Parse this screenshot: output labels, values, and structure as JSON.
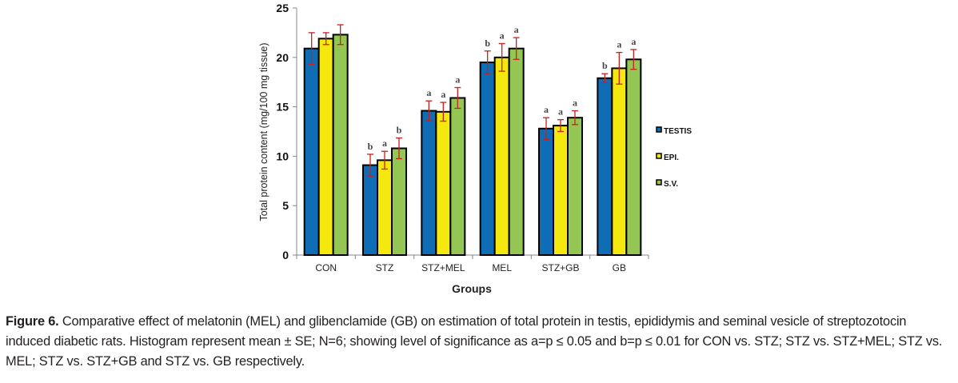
{
  "chart_data": {
    "type": "bar",
    "title": "",
    "xlabel": "Groups",
    "ylabel": "Total protein content (mg/100 mg tissue)",
    "ylim": [
      0,
      25
    ],
    "yticks": [
      0,
      5,
      10,
      15,
      20,
      25
    ],
    "grid": false,
    "legend_position": "right",
    "categories": [
      "CON",
      "STZ",
      "STZ+MEL",
      "MEL",
      "STZ+GB",
      "GB"
    ],
    "series": [
      {
        "name": "TESTIS",
        "color": "#0e6db5",
        "values": [
          20.9,
          9.1,
          14.6,
          19.5,
          12.8,
          17.9
        ],
        "errors": [
          1.6,
          1.1,
          1.0,
          1.15,
          1.1,
          0.45
        ],
        "labels": [
          "",
          "b",
          "a",
          "b",
          "a",
          "b"
        ]
      },
      {
        "name": "EPI.",
        "color": "#f5e80e",
        "values": [
          21.9,
          9.6,
          14.5,
          20.0,
          13.1,
          18.9
        ],
        "errors": [
          0.6,
          0.9,
          0.95,
          1.4,
          0.6,
          1.6
        ],
        "labels": [
          "",
          "a",
          "a",
          "a",
          "a",
          "a"
        ]
      },
      {
        "name": "S.V.",
        "color": "#93c653",
        "values": [
          22.3,
          10.8,
          15.9,
          20.9,
          13.9,
          19.8
        ],
        "errors": [
          1.0,
          1.05,
          1.05,
          1.1,
          0.7,
          1.0
        ],
        "labels": [
          "",
          "b",
          "a",
          "a",
          "a",
          "a"
        ]
      }
    ],
    "error_bar_color": "#cc1f1f"
  },
  "caption": {
    "label": "Figure 6.",
    "text": " Comparative effect of melatonin (MEL) and glibenclamide (GB) on estimation of total protein in testis, epididymis and seminal vesicle of streptozotocin induced diabetic rats. Histogram represent mean ± SE; N=6; showing level of significance as a=p ≤ 0.05 and b=p ≤ 0.01 for CON vs. STZ; STZ vs. STZ+MEL; STZ vs. MEL; STZ vs. STZ+GB and STZ vs. GB respectively."
  }
}
